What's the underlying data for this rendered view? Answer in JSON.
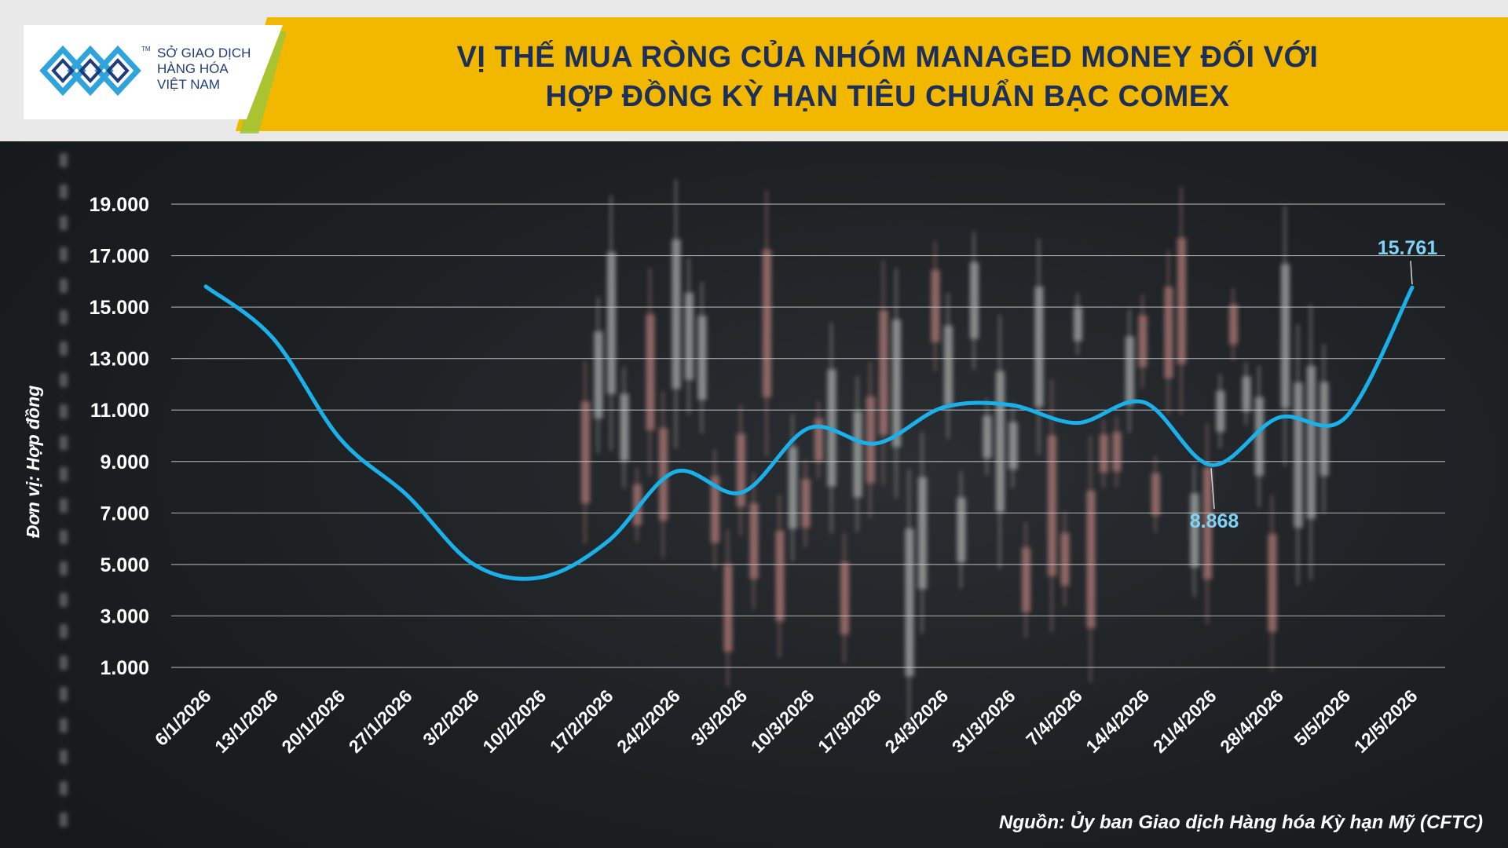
{
  "header": {
    "logo_line1": "SỞ GIAO DỊCH",
    "logo_line2": "HÀNG HÓA",
    "logo_line3": "VIỆT NAM",
    "logo_tm": "TM",
    "title_line1": "VỊ THẾ MUA RÒNG CỦA NHÓM MANAGED MONEY ĐỐI VỚI",
    "title_line2": "HỢP ĐỒNG KỲ HẠN TIÊU CHUẨN BẠC COMEX"
  },
  "colors": {
    "banner": "#f2b800",
    "title": "#1c2e5c",
    "line": "#1ab0ea",
    "label": "#7ed3f7",
    "logo": "#1f3d7a",
    "logo_accent": "#9cc43a"
  },
  "chart_data": {
    "type": "line",
    "title": "VỊ THẾ MUA RÒNG CỦA NHÓM MANAGED MONEY ĐỐI VỚI HỢP ĐỒNG KỲ HẠN TIÊU CHUẨN BẠC COMEX",
    "xlabel": "",
    "ylabel": "Đơn vị: Hợp đồng",
    "categories": [
      "6/1/2026",
      "13/1/2026",
      "20/1/2026",
      "27/1/2026",
      "3/2/2026",
      "10/2/2026",
      "17/2/2026",
      "24/2/2026",
      "3/3/2026",
      "10/3/2026",
      "17/3/2026",
      "24/3/2026",
      "31/3/2026",
      "7/4/2026",
      "14/4/2026",
      "21/4/2026",
      "28/4/2026",
      "5/5/2026",
      "12/5/2026"
    ],
    "series": [
      {
        "values": [
          15800,
          13800,
          9900,
          7700,
          5000,
          4500,
          5900,
          8600,
          7800,
          10300,
          9700,
          11100,
          11200,
          10500,
          11300,
          8868,
          10700,
          10700,
          15761
        ]
      }
    ],
    "yticks": [
      1000,
      3000,
      5000,
      7000,
      9000,
      11000,
      13000,
      15000,
      17000,
      19000
    ],
    "ytick_labels": [
      "1.000",
      "3.000",
      "5.000",
      "7.000",
      "9.000",
      "11.000",
      "13.000",
      "15.000",
      "17.000",
      "19.000"
    ],
    "ylim": [
      1000,
      19000
    ],
    "grid": true,
    "annotations": [
      {
        "index": 15,
        "text": "8.868"
      },
      {
        "index": 18,
        "text": "15.761"
      }
    ]
  },
  "footer": {
    "source": "Nguồn: Ủy ban Giao dịch Hàng hóa Kỳ hạn Mỹ (CFTC)"
  }
}
